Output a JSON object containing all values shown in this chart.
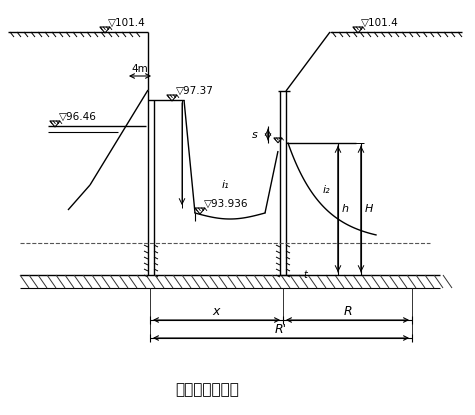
{
  "title": "涌水量计算简图",
  "title_fontsize": 11,
  "bg_color": "#ffffff",
  "line_color": "#000000",
  "labels": {
    "elev_101_4_left": "▽101.4",
    "elev_101_4_right": "▽101.4",
    "elev_97_37": "▽97.37",
    "elev_96_46": "▽96.46",
    "elev_93_936": "▽93.936",
    "dim_4m": "4m",
    "label_x": "x",
    "label_R": "R",
    "label_R_prime": "R'",
    "label_s": "s",
    "label_H": "H",
    "label_h": "h",
    "label_i1": "i₁",
    "label_i2": "i₂",
    "label_t": "t"
  }
}
